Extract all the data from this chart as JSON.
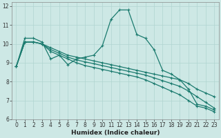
{
  "xlabel": "Humidex (Indice chaleur)",
  "x": [
    0,
    1,
    2,
    3,
    4,
    5,
    6,
    7,
    8,
    9,
    10,
    11,
    12,
    13,
    14,
    15,
    16,
    17,
    18,
    19,
    20,
    21,
    22,
    23
  ],
  "series": [
    [
      8.8,
      10.3,
      10.3,
      10.1,
      9.2,
      9.4,
      8.9,
      9.2,
      9.3,
      9.4,
      9.9,
      11.3,
      11.8,
      11.8,
      10.5,
      10.3,
      9.7,
      8.6,
      8.4,
      8.1,
      7.6,
      6.8,
      6.7,
      6.5
    ],
    [
      8.8,
      10.1,
      10.1,
      10.0,
      9.8,
      9.6,
      9.4,
      9.3,
      9.2,
      9.1,
      9.0,
      8.9,
      8.8,
      8.7,
      8.6,
      8.5,
      8.4,
      8.3,
      8.2,
      8.1,
      7.9,
      7.6,
      7.4,
      7.2
    ],
    [
      8.8,
      10.1,
      10.1,
      10.0,
      9.7,
      9.5,
      9.3,
      9.15,
      9.05,
      8.95,
      8.85,
      8.75,
      8.65,
      8.55,
      8.45,
      8.35,
      8.2,
      8.05,
      7.9,
      7.75,
      7.5,
      7.2,
      6.9,
      6.6
    ],
    [
      8.8,
      10.1,
      10.1,
      10.0,
      9.6,
      9.4,
      9.2,
      9.0,
      8.85,
      8.75,
      8.65,
      8.55,
      8.45,
      8.35,
      8.25,
      8.1,
      7.9,
      7.7,
      7.5,
      7.3,
      7.0,
      6.7,
      6.6,
      6.4
    ]
  ],
  "line_color": "#1a7a6e",
  "bg_color": "#cde8e5",
  "grid_color": "#b0d4d0",
  "ylim": [
    6,
    12.2
  ],
  "yticks": [
    6,
    7,
    8,
    9,
    10,
    11,
    12
  ],
  "xticks": [
    0,
    1,
    2,
    3,
    4,
    5,
    6,
    7,
    8,
    9,
    10,
    11,
    12,
    13,
    14,
    15,
    16,
    17,
    18,
    19,
    20,
    21,
    22,
    23
  ],
  "marker": "+",
  "markersize": 3.5,
  "linewidth": 0.9,
  "xlabel_fontsize": 6.5,
  "tick_fontsize": 5.5
}
